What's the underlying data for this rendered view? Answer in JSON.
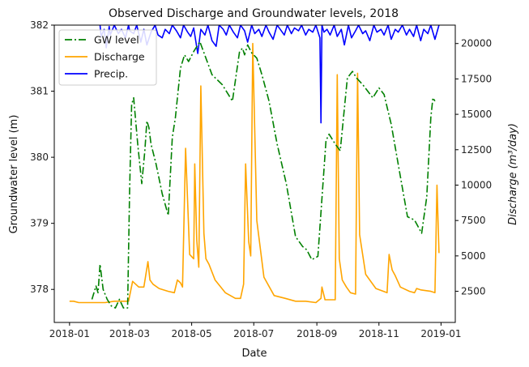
{
  "chart_data": {
    "type": "line",
    "title": "Observed Discharge and Groundwater levels, 2018",
    "xlabel": "Date",
    "ylabel_left": "Groundwater level (m)",
    "ylabel_right": "Discharge (m³/day)",
    "x_ticks": [
      "2018-01",
      "2018-03",
      "2018-05",
      "2018-07",
      "2018-09",
      "2018-11",
      "2019-01"
    ],
    "y_left_ticks": [
      "378",
      "379",
      "380",
      "381",
      "382"
    ],
    "y_right_ticks": [
      "2500",
      "5000",
      "7500",
      "10000",
      "12500",
      "15000",
      "17500",
      "20000"
    ],
    "xlim": [
      "2017-12-17",
      "2019-01-15"
    ],
    "ylim_left": [
      377.5,
      382.0
    ],
    "ylim_right": [
      300,
      21300
    ],
    "legend_position": "upper-left",
    "grid": false,
    "colors": {
      "gw": "#008000",
      "discharge": "#FFA500",
      "precip": "#0000FF"
    },
    "series": [
      {
        "name": "GW level",
        "axis": "left",
        "style": "dashdot",
        "x": [
          "2018-01-23",
          "2018-01-27",
          "2018-01-29",
          "2018-01-31",
          "2018-02-03",
          "2018-02-07",
          "2018-02-11",
          "2018-02-15",
          "2018-02-19",
          "2018-02-23",
          "2018-02-27",
          "2018-03-01",
          "2018-03-03",
          "2018-03-05",
          "2018-03-09",
          "2018-03-13",
          "2018-03-16",
          "2018-03-18",
          "2018-03-20",
          "2018-03-22",
          "2018-03-27",
          "2018-04-02",
          "2018-04-08",
          "2018-04-12",
          "2018-04-15",
          "2018-04-17",
          "2018-04-20",
          "2018-04-24",
          "2018-04-28",
          "2018-05-03",
          "2018-05-09",
          "2018-05-15",
          "2018-05-21",
          "2018-05-31",
          "2018-06-10",
          "2018-06-17",
          "2018-06-20",
          "2018-06-22",
          "2018-06-25",
          "2018-06-29",
          "2018-07-04",
          "2018-07-09",
          "2018-07-16",
          "2018-07-24",
          "2018-08-02",
          "2018-08-11",
          "2018-08-18",
          "2018-08-22",
          "2018-08-27",
          "2018-09-02",
          "2018-09-10",
          "2018-09-13",
          "2018-09-15",
          "2018-09-19",
          "2018-09-24",
          "2018-10-01",
          "2018-10-06",
          "2018-10-10",
          "2018-10-16",
          "2018-10-26",
          "2018-11-01",
          "2018-11-06",
          "2018-11-13",
          "2018-11-21",
          "2018-11-29",
          "2018-12-06",
          "2018-12-13",
          "2018-12-18",
          "2018-12-22",
          "2018-12-24",
          "2018-12-26",
          "2018-12-28"
        ],
        "values": [
          377.85,
          378.05,
          377.95,
          378.38,
          378.0,
          377.85,
          377.75,
          377.72,
          377.85,
          377.72,
          377.72,
          379.5,
          380.8,
          380.9,
          380.2,
          379.6,
          380.1,
          380.55,
          380.45,
          380.2,
          379.9,
          379.45,
          379.12,
          380.3,
          380.6,
          380.9,
          381.35,
          381.55,
          381.45,
          381.6,
          381.75,
          381.5,
          381.25,
          381.1,
          380.85,
          381.6,
          381.65,
          381.55,
          381.7,
          381.58,
          381.5,
          381.25,
          380.85,
          380.2,
          379.6,
          378.8,
          378.65,
          378.6,
          378.45,
          378.5,
          380.25,
          380.35,
          380.3,
          380.2,
          380.1,
          381.2,
          381.3,
          381.2,
          381.1,
          380.9,
          381.05,
          380.95,
          380.5,
          379.8,
          379.1,
          379.05,
          378.85,
          379.4,
          380.6,
          380.9,
          380.85,
          null
        ]
      },
      {
        "name": "Discharge",
        "axis": "right",
        "style": "solid",
        "x": [
          "2018-01-01",
          "2018-01-05",
          "2018-01-10",
          "2018-01-20",
          "2018-01-28",
          "2018-02-05",
          "2018-02-14",
          "2018-02-23",
          "2018-02-28",
          "2018-03-04",
          "2018-03-10",
          "2018-03-15",
          "2018-03-19",
          "2018-03-21",
          "2018-03-24",
          "2018-03-30",
          "2018-04-08",
          "2018-04-14",
          "2018-04-17",
          "2018-04-20",
          "2018-04-22",
          "2018-04-25",
          "2018-04-29",
          "2018-05-03",
          "2018-05-04",
          "2018-05-06",
          "2018-05-08",
          "2018-05-10",
          "2018-05-13",
          "2018-05-15",
          "2018-05-18",
          "2018-05-24",
          "2018-06-03",
          "2018-06-13",
          "2018-06-18",
          "2018-06-21",
          "2018-06-23",
          "2018-06-26",
          "2018-06-28",
          "2018-06-30",
          "2018-07-04",
          "2018-07-11",
          "2018-07-21",
          "2018-08-01",
          "2018-08-11",
          "2018-08-21",
          "2018-08-31",
          "2018-09-05",
          "2018-09-06",
          "2018-09-09",
          "2018-09-19",
          "2018-09-21",
          "2018-09-23",
          "2018-09-26",
          "2018-09-30",
          "2018-10-04",
          "2018-10-09",
          "2018-10-11",
          "2018-10-13",
          "2018-10-19",
          "2018-10-29",
          "2018-11-09",
          "2018-11-11",
          "2018-11-14",
          "2018-11-17",
          "2018-11-22",
          "2018-12-01",
          "2018-12-06",
          "2018-12-08",
          "2018-12-12",
          "2018-12-22",
          "2018-12-26",
          "2018-12-28",
          "2018-12-30"
        ],
        "values": [
          1800,
          1800,
          1700,
          1700,
          1700,
          1700,
          1800,
          1800,
          1800,
          3200,
          2800,
          2800,
          4600,
          3300,
          3000,
          2700,
          2500,
          2400,
          3300,
          3100,
          2800,
          12600,
          5100,
          4800,
          11500,
          6100,
          4200,
          17000,
          6600,
          4800,
          4400,
          3300,
          2400,
          2000,
          2000,
          3000,
          11500,
          6000,
          5000,
          20000,
          7500,
          3500,
          2200,
          2000,
          1800,
          1800,
          1700,
          2000,
          2800,
          1900,
          1900,
          17800,
          4800,
          3300,
          2800,
          2400,
          2300,
          17900,
          6500,
          3700,
          2700,
          2400,
          5100,
          4000,
          3600,
          2800,
          2500,
          2400,
          2700,
          2600,
          2500,
          2400,
          10000,
          5200
        ]
      },
      {
        "name": "Precip.",
        "axis": "right",
        "style": "solid",
        "x": [
          "2018-01-31",
          "2018-02-01",
          "2018-02-04",
          "2018-02-06",
          "2018-02-09",
          "2018-02-10",
          "2018-02-14",
          "2018-02-18",
          "2018-02-21",
          "2018-02-25",
          "2018-02-28",
          "2018-03-01",
          "2018-03-05",
          "2018-03-08",
          "2018-03-12",
          "2018-03-15",
          "2018-03-18",
          "2018-03-22",
          "2018-03-26",
          "2018-03-29",
          "2018-04-02",
          "2018-04-05",
          "2018-04-09",
          "2018-04-12",
          "2018-04-16",
          "2018-04-20",
          "2018-04-23",
          "2018-04-27",
          "2018-04-30",
          "2018-05-03",
          "2018-05-07",
          "2018-05-10",
          "2018-05-14",
          "2018-05-17",
          "2018-05-21",
          "2018-05-25",
          "2018-05-28",
          "2018-06-01",
          "2018-06-04",
          "2018-06-07",
          "2018-06-11",
          "2018-06-15",
          "2018-06-18",
          "2018-06-22",
          "2018-06-25",
          "2018-06-29",
          "2018-07-02",
          "2018-07-06",
          "2018-07-09",
          "2018-07-13",
          "2018-07-16",
          "2018-07-20",
          "2018-07-24",
          "2018-07-27",
          "2018-07-31",
          "2018-08-03",
          "2018-08-07",
          "2018-08-10",
          "2018-08-14",
          "2018-08-17",
          "2018-08-21",
          "2018-08-24",
          "2018-08-28",
          "2018-08-31",
          "2018-09-04",
          "2018-09-05",
          "2018-09-06",
          "2018-09-08",
          "2018-09-11",
          "2018-09-14",
          "2018-09-18",
          "2018-09-21",
          "2018-09-25",
          "2018-09-28",
          "2018-10-02",
          "2018-10-05",
          "2018-10-09",
          "2018-10-12",
          "2018-10-16",
          "2018-10-19",
          "2018-10-23",
          "2018-10-27",
          "2018-10-30",
          "2018-11-03",
          "2018-11-06",
          "2018-11-10",
          "2018-11-13",
          "2018-11-17",
          "2018-11-20",
          "2018-11-24",
          "2018-11-28",
          "2018-12-01",
          "2018-12-05",
          "2018-12-08",
          "2018-12-12",
          "2018-12-15",
          "2018-12-19",
          "2018-12-22",
          "2018-12-26",
          "2018-12-30"
        ],
        "values": [
          21300,
          20500,
          21000,
          19700,
          21200,
          20600,
          21300,
          20700,
          21000,
          20400,
          21300,
          20900,
          20700,
          21300,
          20100,
          21000,
          19900,
          20800,
          21300,
          20600,
          20400,
          21000,
          20700,
          21300,
          20900,
          20400,
          21300,
          20800,
          20500,
          21100,
          19300,
          21000,
          20600,
          21300,
          20200,
          19800,
          21300,
          21000,
          20600,
          21300,
          20800,
          20400,
          21300,
          20900,
          20100,
          21300,
          20700,
          21000,
          20500,
          21300,
          20800,
          20300,
          21300,
          21000,
          20600,
          21300,
          20700,
          21100,
          20900,
          21300,
          20600,
          21000,
          20800,
          21300,
          20400,
          14400,
          21300,
          20800,
          21000,
          20600,
          21300,
          20500,
          21000,
          19900,
          21300,
          20400,
          20900,
          21300,
          20700,
          20900,
          20200,
          21300,
          20800,
          21000,
          20600,
          21300,
          20300,
          21000,
          20800,
          21300,
          20600,
          21000,
          20500,
          21300,
          20200,
          21000,
          20700,
          21300,
          20300,
          21300
        ]
      }
    ]
  }
}
